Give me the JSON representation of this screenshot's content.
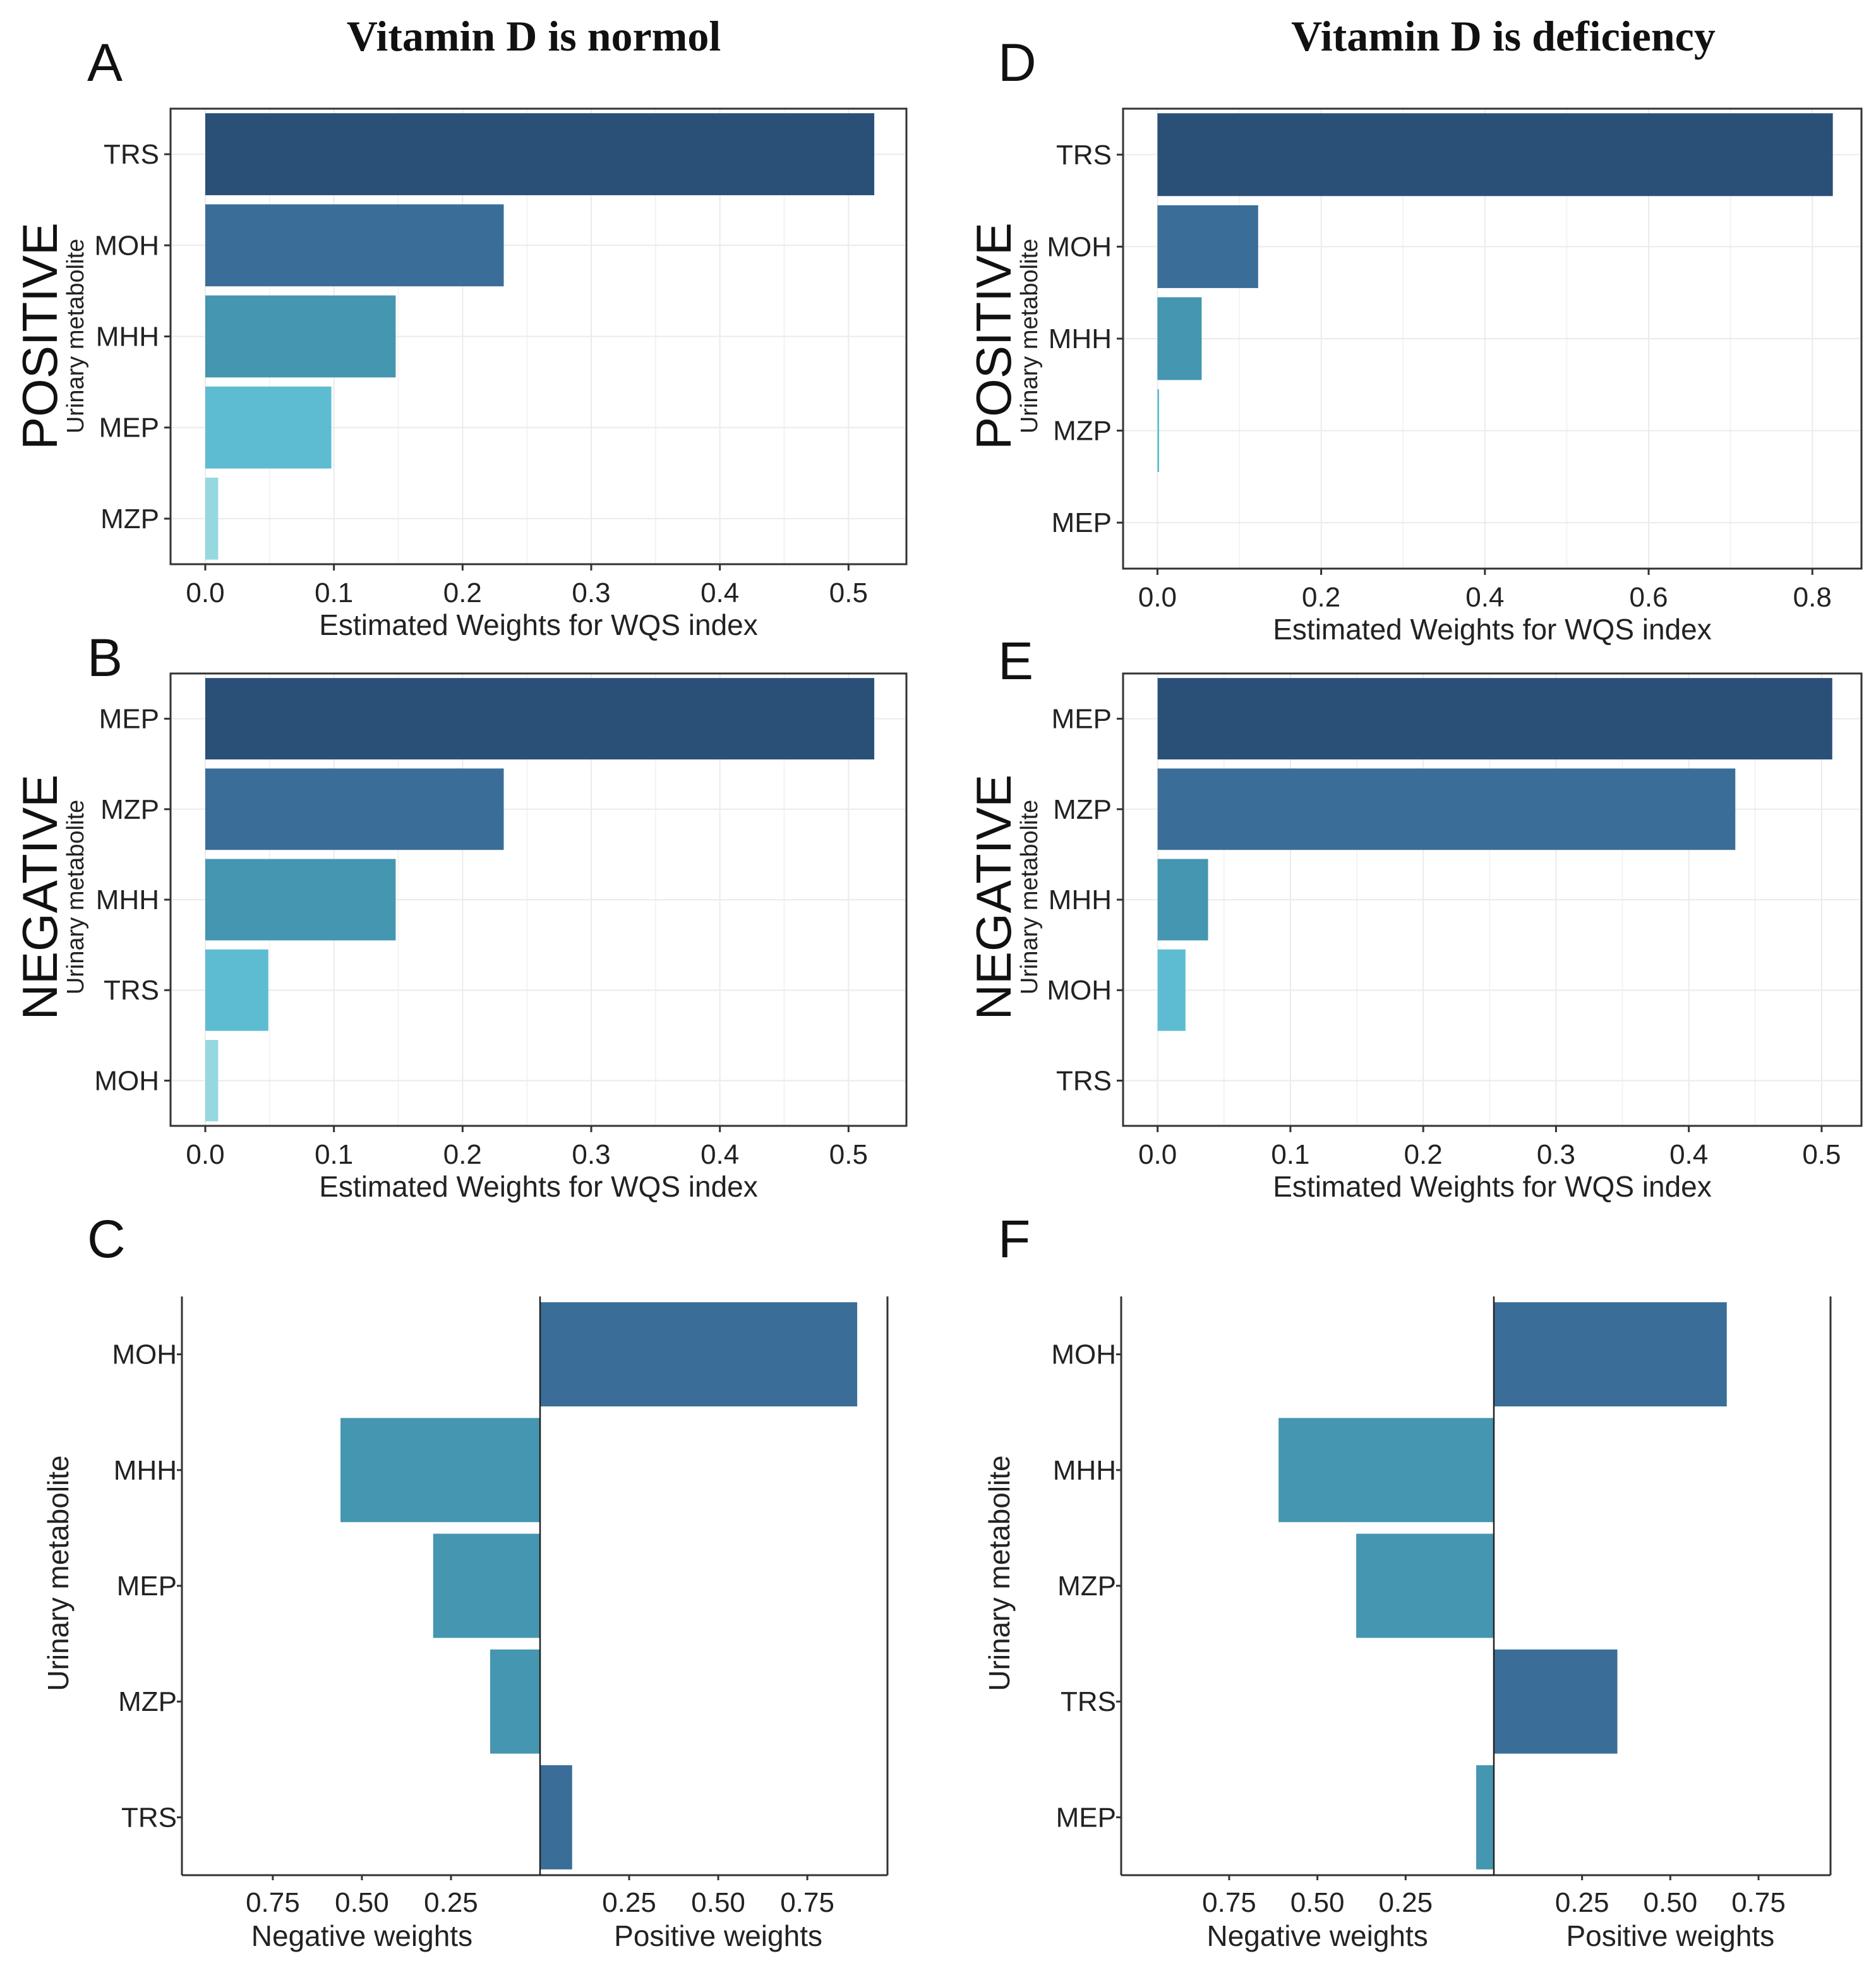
{
  "titles": {
    "left": "Vitamin D is normol",
    "right": "Vitamin D is deficiency"
  },
  "labels": {
    "positive": "POSITIVE",
    "negative": "NEGATIVE",
    "ylabel": "Urinary metabolite",
    "xlabel": "Estimated Weights for WQS index",
    "neg_weights": "Negative weights",
    "pos_weights": "Positive weights"
  },
  "colors": {
    "rank1": "#2a5078",
    "rank2": "#3a6e98",
    "rank3": "#4596b0",
    "rank4": "#5ebcd2",
    "rank5": "#96d8e0",
    "positive_bar": "#3a6e98",
    "negative_bar": "#4596b0"
  },
  "chart_data": [
    {
      "panel": "A",
      "type": "bar",
      "orientation": "horizontal",
      "group": "POSITIVE",
      "title": "Vitamin D is normol",
      "categories": [
        "TRS",
        "MOH",
        "MHH",
        "MEP",
        "MZP"
      ],
      "values": [
        0.52,
        0.232,
        0.148,
        0.098,
        0.01
      ],
      "ticks": [
        "0.0",
        "0.1",
        "0.2",
        "0.3",
        "0.4",
        "0.5"
      ],
      "xlabel": "Estimated Weights for WQS index",
      "ylabel": "Urinary metabolite",
      "xlim": [
        -0.027,
        0.545
      ]
    },
    {
      "panel": "B",
      "type": "bar",
      "orientation": "horizontal",
      "group": "NEGATIVE",
      "categories": [
        "MEP",
        "MZP",
        "MHH",
        "TRS",
        "MOH"
      ],
      "values": [
        0.52,
        0.232,
        0.148,
        0.049,
        0.01
      ],
      "ticks": [
        "0.0",
        "0.1",
        "0.2",
        "0.3",
        "0.4",
        "0.5"
      ],
      "xlabel": "Estimated Weights for WQS index",
      "ylabel": "Urinary metabolite",
      "xlim": [
        -0.027,
        0.545
      ]
    },
    {
      "panel": "C",
      "type": "bar",
      "orientation": "diverging",
      "categories": [
        "MOH",
        "MHH",
        "MEP",
        "MZP",
        "TRS"
      ],
      "values": [
        0.89,
        -0.56,
        -0.3,
        -0.14,
        0.09
      ],
      "ticks_negative": [
        "0.75",
        "0.50",
        "0.25"
      ],
      "ticks_positive": [
        "0.25",
        "0.50",
        "0.75"
      ],
      "xlabel_left": "Negative weights",
      "xlabel_right": "Positive weights",
      "ylabel": "Urinary metabolite",
      "xlim": [
        -1.0,
        0.98
      ]
    },
    {
      "panel": "D",
      "type": "bar",
      "orientation": "horizontal",
      "group": "POSITIVE",
      "title": "Vitamin D is deficiency",
      "categories": [
        "TRS",
        "MOH",
        "MHH",
        "MZP",
        "MEP"
      ],
      "values": [
        0.825,
        0.123,
        0.054,
        0.002,
        0
      ],
      "ticks": [
        "0.0",
        "0.2",
        "0.4",
        "0.6",
        "0.8"
      ],
      "xlabel": "Estimated Weights for WQS index",
      "ylabel": "Urinary metabolite",
      "xlim": [
        -0.042,
        0.86
      ]
    },
    {
      "panel": "E",
      "type": "bar",
      "orientation": "horizontal",
      "group": "NEGATIVE",
      "categories": [
        "MEP",
        "MZP",
        "MHH",
        "MOH",
        "TRS"
      ],
      "values": [
        0.508,
        0.435,
        0.038,
        0.021,
        0
      ],
      "ticks": [
        "0.0",
        "0.1",
        "0.2",
        "0.3",
        "0.4",
        "0.5"
      ],
      "xlabel": "Estimated Weights for WQS index",
      "ylabel": "Urinary metabolite",
      "xlim": [
        -0.026,
        0.53
      ]
    },
    {
      "panel": "F",
      "type": "bar",
      "orientation": "diverging",
      "categories": [
        "MOH",
        "MHH",
        "MZP",
        "TRS",
        "MEP"
      ],
      "values": [
        0.66,
        -0.61,
        -0.39,
        0.35,
        -0.05
      ],
      "ticks_negative": [
        "0.75",
        "0.50",
        "0.25"
      ],
      "ticks_positive": [
        "0.25",
        "0.50",
        "0.75"
      ],
      "xlabel_left": "Negative weights",
      "xlabel_right": "Positive weights",
      "ylabel": "Urinary metabolite",
      "xlim": [
        -1.05,
        0.96
      ]
    }
  ]
}
